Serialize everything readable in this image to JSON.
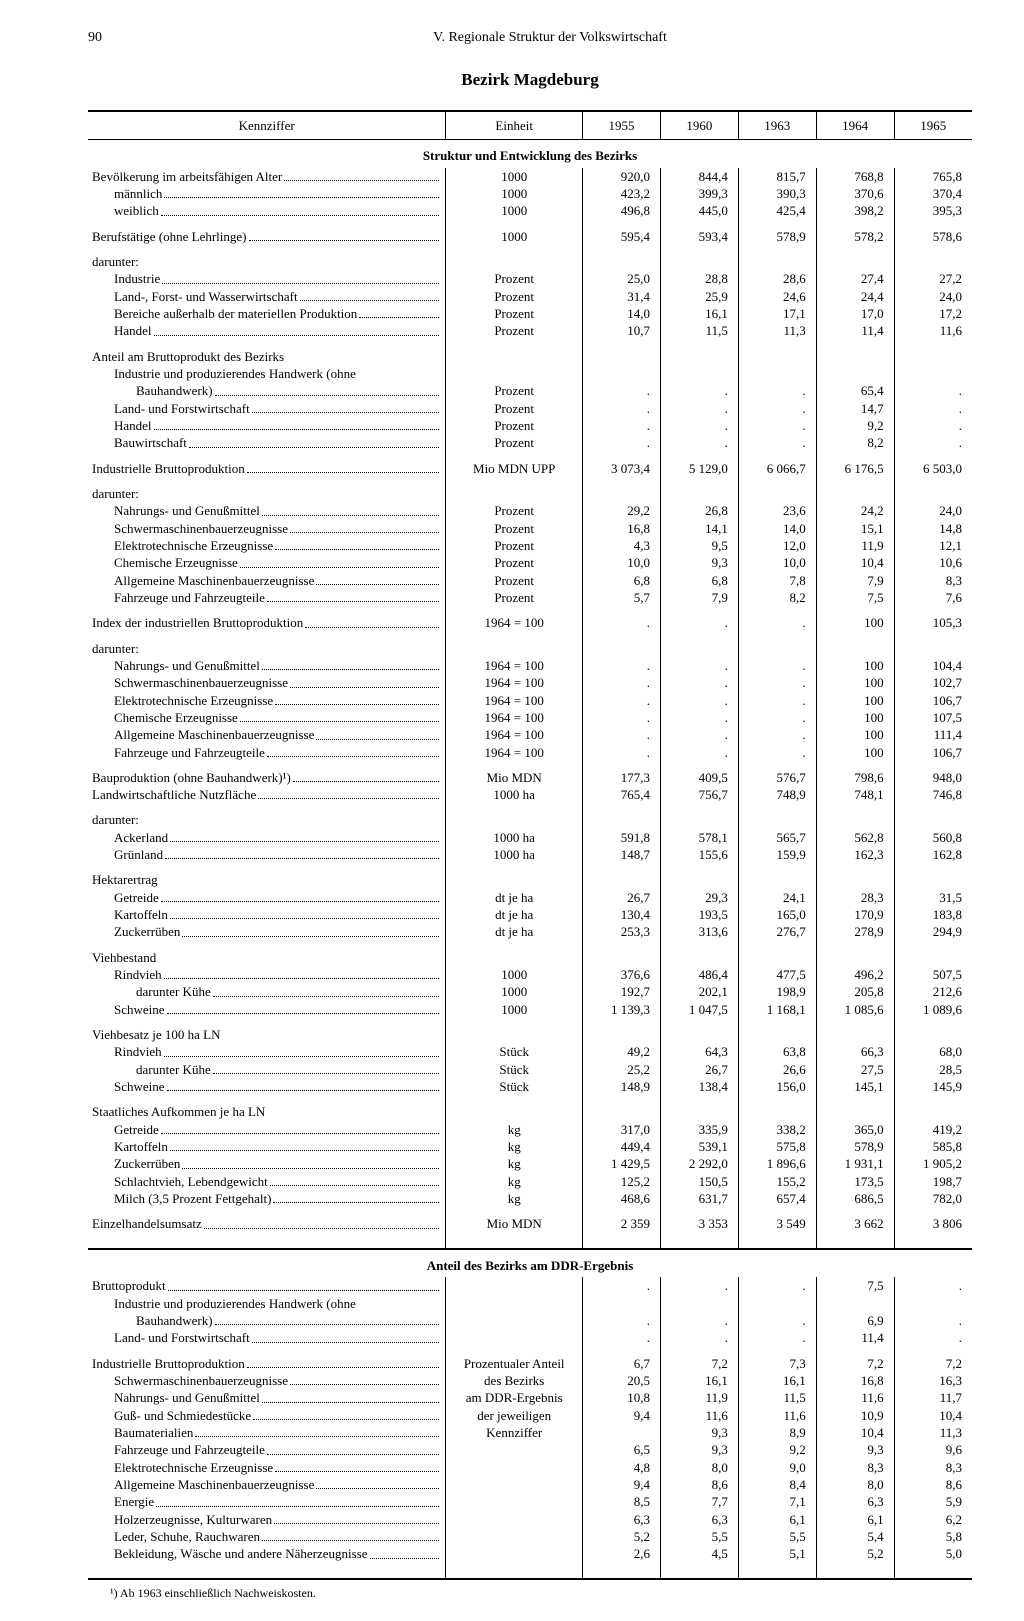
{
  "page_number": "90",
  "chapter": "V. Regionale Struktur der Volkswirtschaft",
  "title": "Bezirk Magdeburg",
  "headers": [
    "Kennziffer",
    "Einheit",
    "1955",
    "1960",
    "1963",
    "1964",
    "1965"
  ],
  "section1": "Struktur und Entwicklung des Bezirks",
  "section2": "Anteil des Bezirks am DDR-Ergebnis",
  "unit_block": [
    "Prozentualer Anteil",
    "des Bezirks",
    "am DDR-Ergebnis",
    "der jeweiligen",
    "Kennziffer"
  ],
  "footnote": "¹) Ab 1963 einschließlich Nachweiskosten.",
  "rows1": [
    {
      "l": "Bevölkerung im arbeitsfähigen Alter",
      "i": 0,
      "u": "1000",
      "v": [
        "920,0",
        "844,4",
        "815,7",
        "768,8",
        "765,8"
      ]
    },
    {
      "l": "männlich",
      "i": 1,
      "u": "1000",
      "v": [
        "423,2",
        "399,3",
        "390,3",
        "370,6",
        "370,4"
      ]
    },
    {
      "l": "weiblich",
      "i": 1,
      "u": "1000",
      "v": [
        "496,8",
        "445,0",
        "425,4",
        "398,2",
        "395,3"
      ]
    },
    {
      "sp": 1
    },
    {
      "l": "Berufstätige (ohne Lehrlinge)",
      "i": 0,
      "u": "1000",
      "v": [
        "595,4",
        "593,4",
        "578,9",
        "578,2",
        "578,6"
      ]
    },
    {
      "sp": 1
    },
    {
      "l": "darunter:",
      "i": 0,
      "plain": 1
    },
    {
      "l": "Industrie",
      "i": 1,
      "u": "Prozent",
      "v": [
        "25,0",
        "28,8",
        "28,6",
        "27,4",
        "27,2"
      ]
    },
    {
      "l": "Land-, Forst- und Wasserwirtschaft",
      "i": 1,
      "u": "Prozent",
      "v": [
        "31,4",
        "25,9",
        "24,6",
        "24,4",
        "24,0"
      ]
    },
    {
      "l": "Bereiche außerhalb der materiellen Produktion",
      "i": 1,
      "u": "Prozent",
      "v": [
        "14,0",
        "16,1",
        "17,1",
        "17,0",
        "17,2"
      ]
    },
    {
      "l": "Handel",
      "i": 1,
      "u": "Prozent",
      "v": [
        "10,7",
        "11,5",
        "11,3",
        "11,4",
        "11,6"
      ]
    },
    {
      "sp": 1
    },
    {
      "l": "Anteil am Bruttoprodukt des Bezirks",
      "i": 0,
      "plain": 1
    },
    {
      "l": "Industrie und produzierendes Handwerk (ohne",
      "i": 1,
      "plain": 1
    },
    {
      "l": "Bauhandwerk)",
      "i": 2,
      "u": "Prozent",
      "v": [
        ".",
        ".",
        ".",
        "65,4",
        "."
      ]
    },
    {
      "l": "Land- und Forstwirtschaft",
      "i": 1,
      "u": "Prozent",
      "v": [
        ".",
        ".",
        ".",
        "14,7",
        "."
      ]
    },
    {
      "l": "Handel",
      "i": 1,
      "u": "Prozent",
      "v": [
        ".",
        ".",
        ".",
        "9,2",
        "."
      ]
    },
    {
      "l": "Bauwirtschaft",
      "i": 1,
      "u": "Prozent",
      "v": [
        ".",
        ".",
        ".",
        "8,2",
        "."
      ]
    },
    {
      "sp": 1
    },
    {
      "l": "Industrielle Bruttoproduktion",
      "i": 0,
      "u": "Mio MDN UPP",
      "v": [
        "3 073,4",
        "5 129,0",
        "6 066,7",
        "6 176,5",
        "6 503,0"
      ]
    },
    {
      "sp": 1
    },
    {
      "l": "darunter:",
      "i": 0,
      "plain": 1
    },
    {
      "l": "Nahrungs- und Genußmittel",
      "i": 1,
      "u": "Prozent",
      "v": [
        "29,2",
        "26,8",
        "23,6",
        "24,2",
        "24,0"
      ]
    },
    {
      "l": "Schwermaschinenbauerzeugnisse",
      "i": 1,
      "u": "Prozent",
      "v": [
        "16,8",
        "14,1",
        "14,0",
        "15,1",
        "14,8"
      ]
    },
    {
      "l": "Elektrotechnische Erzeugnisse",
      "i": 1,
      "u": "Prozent",
      "v": [
        "4,3",
        "9,5",
        "12,0",
        "11,9",
        "12,1"
      ]
    },
    {
      "l": "Chemische Erzeugnisse",
      "i": 1,
      "u": "Prozent",
      "v": [
        "10,0",
        "9,3",
        "10,0",
        "10,4",
        "10,6"
      ]
    },
    {
      "l": "Allgemeine Maschinenbauerzeugnisse",
      "i": 1,
      "u": "Prozent",
      "v": [
        "6,8",
        "6,8",
        "7,8",
        "7,9",
        "8,3"
      ]
    },
    {
      "l": "Fahrzeuge und Fahrzeugteile",
      "i": 1,
      "u": "Prozent",
      "v": [
        "5,7",
        "7,9",
        "8,2",
        "7,5",
        "7,6"
      ]
    },
    {
      "sp": 1
    },
    {
      "l": "Index der industriellen Bruttoproduktion",
      "i": 0,
      "u": "1964 = 100",
      "v": [
        ".",
        ".",
        ".",
        "100",
        "105,3"
      ]
    },
    {
      "sp": 1
    },
    {
      "l": "darunter:",
      "i": 0,
      "plain": 1
    },
    {
      "l": "Nahrungs- und Genußmittel",
      "i": 1,
      "u": "1964 = 100",
      "v": [
        ".",
        ".",
        ".",
        "100",
        "104,4"
      ]
    },
    {
      "l": "Schwermaschinenbauerzeugnisse",
      "i": 1,
      "u": "1964 = 100",
      "v": [
        ".",
        ".",
        ".",
        "100",
        "102,7"
      ]
    },
    {
      "l": "Elektrotechnische Erzeugnisse",
      "i": 1,
      "u": "1964 = 100",
      "v": [
        ".",
        ".",
        ".",
        "100",
        "106,7"
      ]
    },
    {
      "l": "Chemische Erzeugnisse",
      "i": 1,
      "u": "1964 = 100",
      "v": [
        ".",
        ".",
        ".",
        "100",
        "107,5"
      ]
    },
    {
      "l": "Allgemeine Maschinenbauerzeugnisse",
      "i": 1,
      "u": "1964 = 100",
      "v": [
        ".",
        ".",
        ".",
        "100",
        "111,4"
      ]
    },
    {
      "l": "Fahrzeuge und Fahrzeugteile",
      "i": 1,
      "u": "1964 = 100",
      "v": [
        ".",
        ".",
        ".",
        "100",
        "106,7"
      ]
    },
    {
      "sp": 1
    },
    {
      "l": "Bauproduktion (ohne Bauhandwerk)¹)",
      "i": 0,
      "u": "Mio MDN",
      "v": [
        "177,3",
        "409,5",
        "576,7",
        "798,6",
        "948,0"
      ]
    },
    {
      "l": "Landwirtschaftliche Nutzfläche",
      "i": 0,
      "u": "1000 ha",
      "v": [
        "765,4",
        "756,7",
        "748,9",
        "748,1",
        "746,8"
      ]
    },
    {
      "sp": 1
    },
    {
      "l": "darunter:",
      "i": 0,
      "plain": 1
    },
    {
      "l": "Ackerland",
      "i": 1,
      "u": "1000 ha",
      "v": [
        "591,8",
        "578,1",
        "565,7",
        "562,8",
        "560,8"
      ]
    },
    {
      "l": "Grünland",
      "i": 1,
      "u": "1000 ha",
      "v": [
        "148,7",
        "155,6",
        "159,9",
        "162,3",
        "162,8"
      ]
    },
    {
      "sp": 1
    },
    {
      "l": "Hektarertrag",
      "i": 0,
      "plain": 1
    },
    {
      "l": "Getreide",
      "i": 1,
      "u": "dt je ha",
      "v": [
        "26,7",
        "29,3",
        "24,1",
        "28,3",
        "31,5"
      ]
    },
    {
      "l": "Kartoffeln",
      "i": 1,
      "u": "dt je ha",
      "v": [
        "130,4",
        "193,5",
        "165,0",
        "170,9",
        "183,8"
      ]
    },
    {
      "l": "Zuckerrüben",
      "i": 1,
      "u": "dt je ha",
      "v": [
        "253,3",
        "313,6",
        "276,7",
        "278,9",
        "294,9"
      ]
    },
    {
      "sp": 1
    },
    {
      "l": "Viehbestand",
      "i": 0,
      "plain": 1
    },
    {
      "l": "Rindvieh",
      "i": 1,
      "u": "1000",
      "v": [
        "376,6",
        "486,4",
        "477,5",
        "496,2",
        "507,5"
      ]
    },
    {
      "l": "darunter Kühe",
      "i": 2,
      "u": "1000",
      "v": [
        "192,7",
        "202,1",
        "198,9",
        "205,8",
        "212,6"
      ]
    },
    {
      "l": "Schweine",
      "i": 1,
      "u": "1000",
      "v": [
        "1 139,3",
        "1 047,5",
        "1 168,1",
        "1 085,6",
        "1 089,6"
      ]
    },
    {
      "sp": 1
    },
    {
      "l": "Viehbesatz je 100 ha LN",
      "i": 0,
      "plain": 1
    },
    {
      "l": "Rindvieh",
      "i": 1,
      "u": "Stück",
      "v": [
        "49,2",
        "64,3",
        "63,8",
        "66,3",
        "68,0"
      ]
    },
    {
      "l": "darunter Kühe",
      "i": 2,
      "u": "Stück",
      "v": [
        "25,2",
        "26,7",
        "26,6",
        "27,5",
        "28,5"
      ]
    },
    {
      "l": "Schweine",
      "i": 1,
      "u": "Stück",
      "v": [
        "148,9",
        "138,4",
        "156,0",
        "145,1",
        "145,9"
      ]
    },
    {
      "sp": 1
    },
    {
      "l": "Staatliches Aufkommen je ha LN",
      "i": 0,
      "plain": 1
    },
    {
      "l": "Getreide",
      "i": 1,
      "u": "kg",
      "v": [
        "317,0",
        "335,9",
        "338,2",
        "365,0",
        "419,2"
      ]
    },
    {
      "l": "Kartoffeln",
      "i": 1,
      "u": "kg",
      "v": [
        "449,4",
        "539,1",
        "575,8",
        "578,9",
        "585,8"
      ]
    },
    {
      "l": "Zuckerrüben",
      "i": 1,
      "u": "kg",
      "v": [
        "1 429,5",
        "2 292,0",
        "1 896,6",
        "1 931,1",
        "1 905,2"
      ]
    },
    {
      "l": "Schlachtvieh, Lebendgewicht",
      "i": 1,
      "u": "kg",
      "v": [
        "125,2",
        "150,5",
        "155,2",
        "173,5",
        "198,7"
      ]
    },
    {
      "l": "Milch (3,5 Prozent Fettgehalt)",
      "i": 1,
      "u": "kg",
      "v": [
        "468,6",
        "631,7",
        "657,4",
        "686,5",
        "782,0"
      ]
    },
    {
      "sp": 1
    },
    {
      "l": "Einzelhandelsumsatz",
      "i": 0,
      "u": "Mio MDN",
      "v": [
        "2 359",
        "3 353",
        "3 549",
        "3 662",
        "3 806"
      ]
    }
  ],
  "rows2": [
    {
      "l": "Bruttoprodukt",
      "i": 0,
      "v": [
        ".",
        ".",
        ".",
        "7,5",
        "."
      ]
    },
    {
      "l": "Industrie und produzierendes Handwerk (ohne",
      "i": 1,
      "plain": 1
    },
    {
      "l": "Bauhandwerk)",
      "i": 2,
      "v": [
        ".",
        ".",
        ".",
        "6,9",
        "."
      ]
    },
    {
      "l": "Land- und Forstwirtschaft",
      "i": 1,
      "v": [
        ".",
        ".",
        ".",
        "11,4",
        "."
      ]
    },
    {
      "sp": 1
    },
    {
      "l": "Industrielle Bruttoproduktion",
      "i": 0,
      "v": [
        "6,7",
        "7,2",
        "7,3",
        "7,2",
        "7,2"
      ]
    },
    {
      "l": "Schwermaschinenbauerzeugnisse",
      "i": 1,
      "v": [
        "20,5",
        "16,1",
        "16,1",
        "16,8",
        "16,3"
      ]
    },
    {
      "l": "Nahrungs- und Genußmittel",
      "i": 1,
      "v": [
        "10,8",
        "11,9",
        "11,5",
        "11,6",
        "11,7"
      ]
    },
    {
      "l": "Guß- und Schmiedestücke",
      "i": 1,
      "v": [
        "9,4",
        "11,6",
        "11,6",
        "10,9",
        "10,4"
      ]
    },
    {
      "l": "Baumaterialien",
      "i": 1,
      "v": [
        "",
        "9,3",
        "8,9",
        "10,4",
        "11,3"
      ]
    },
    {
      "l": "Fahrzeuge und Fahrzeugteile",
      "i": 1,
      "v": [
        "6,5",
        "9,3",
        "9,2",
        "9,3",
        "9,6"
      ]
    },
    {
      "l": "Elektrotechnische Erzeugnisse",
      "i": 1,
      "v": [
        "4,8",
        "8,0",
        "9,0",
        "8,3",
        "8,3"
      ]
    },
    {
      "l": "Allgemeine Maschinenbauerzeugnisse",
      "i": 1,
      "v": [
        "9,4",
        "8,6",
        "8,4",
        "8,0",
        "8,6"
      ]
    },
    {
      "l": "Energie",
      "i": 1,
      "v": [
        "8,5",
        "7,7",
        "7,1",
        "6,3",
        "5,9"
      ]
    },
    {
      "l": "Holzerzeugnisse, Kulturwaren",
      "i": 1,
      "v": [
        "6,3",
        "6,3",
        "6,1",
        "6,1",
        "6,2"
      ]
    },
    {
      "l": "Leder, Schuhe, Rauchwaren",
      "i": 1,
      "v": [
        "5,2",
        "5,5",
        "5,5",
        "5,4",
        "5,8"
      ]
    },
    {
      "l": "Bekleidung, Wäsche und andere Näherzeugnisse",
      "i": 1,
      "v": [
        "2,6",
        "4,5",
        "5,1",
        "5,2",
        "5,0"
      ]
    }
  ]
}
